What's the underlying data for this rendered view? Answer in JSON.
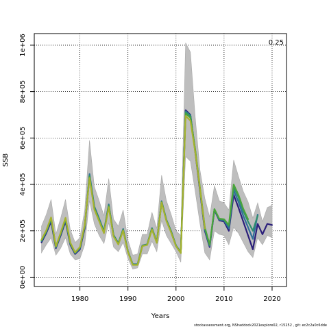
{
  "chart_data": {
    "type": "line",
    "xlabel": "Years",
    "ylabel": "SSB",
    "corner_label": "0.25",
    "xlim": [
      1970.5,
      2023
    ],
    "ylim": [
      -40000,
      1050000
    ],
    "xticks": [
      1980,
      1990,
      2000,
      2010,
      2020
    ],
    "xtick_labels": [
      "1980",
      "1990",
      "2000",
      "2010",
      "2020"
    ],
    "yticks": [
      0,
      200000,
      400000,
      600000,
      800000,
      1000000
    ],
    "ytick_labels": [
      "0e+00",
      "2e+05",
      "4e+05",
      "6e+05",
      "8e+05",
      "1e+06"
    ],
    "grid": true,
    "band": {
      "name": "confidence interval",
      "color": "#bebebe",
      "x": [
        1972,
        1973,
        1974,
        1975,
        1976,
        1977,
        1978,
        1979,
        1980,
        1981,
        1982,
        1983,
        1984,
        1985,
        1986,
        1987,
        1988,
        1989,
        1990,
        1991,
        1992,
        1993,
        1994,
        1995,
        1996,
        1997,
        1998,
        1999,
        2000,
        2001,
        2002,
        2003,
        2004,
        2005,
        2006,
        2007,
        2008,
        2009,
        2010,
        2011,
        2012,
        2013,
        2014,
        2015,
        2016,
        2017,
        2018,
        2019,
        2020
      ],
      "upper": [
        220000,
        270000,
        335000,
        185000,
        255000,
        335000,
        205000,
        150000,
        170000,
        290000,
        590000,
        390000,
        330000,
        265000,
        425000,
        250000,
        220000,
        290000,
        160000,
        95000,
        100000,
        185000,
        185000,
        280000,
        210000,
        440000,
        330000,
        270000,
        200000,
        180000,
        1010000,
        970000,
        690000,
        460000,
        340000,
        260000,
        395000,
        330000,
        320000,
        290000,
        505000,
        435000,
        370000,
        325000,
        255000,
        320000,
        240000,
        300000,
        310000
      ],
      "lower": [
        105000,
        140000,
        170000,
        95000,
        125000,
        170000,
        100000,
        75000,
        80000,
        140000,
        330000,
        230000,
        180000,
        145000,
        235000,
        130000,
        110000,
        150000,
        80000,
        35000,
        40000,
        100000,
        100000,
        155000,
        110000,
        245000,
        180000,
        145000,
        110000,
        65000,
        520000,
        500000,
        370000,
        230000,
        105000,
        75000,
        200000,
        185000,
        180000,
        140000,
        215000,
        190000,
        150000,
        110000,
        85000,
        170000,
        140000,
        180000,
        170000
      ]
    },
    "series": [
      {
        "name": "",
        "color": "#2b1f7a",
        "x": [
          1972,
          1973,
          1974,
          1975,
          1976,
          1977,
          1978,
          1979,
          1980,
          1981,
          1982,
          1983,
          1984,
          1985,
          1986,
          1987,
          1988,
          1989,
          1990,
          1991,
          1992,
          1993,
          1994,
          1995,
          1996,
          1997,
          1998,
          1999,
          2000,
          2001,
          2002,
          2003,
          2004,
          2005,
          2006,
          2007,
          2008,
          2009,
          2010,
          2011,
          2012,
          2013,
          2014,
          2015,
          2016,
          2017,
          2018,
          2019,
          2020
        ],
        "values": [
          150000,
          190000,
          240000,
          125000,
          180000,
          240000,
          140000,
          100000,
          120000,
          210000,
          440000,
          300000,
          250000,
          195000,
          310000,
          180000,
          145000,
          205000,
          110000,
          55000,
          55000,
          135000,
          140000,
          210000,
          150000,
          325000,
          245000,
          195000,
          135000,
          105000,
          720000,
          700000,
          540000,
          370000,
          200000,
          130000,
          290000,
          245000,
          240000,
          200000,
          355000,
          300000,
          240000,
          180000,
          120000,
          230000,
          185000,
          230000,
          225000
        ]
      },
      {
        "name": "",
        "color": "#2f6f9a",
        "x": [
          1972,
          1973,
          1974,
          1975,
          1976,
          1977,
          1978,
          1979,
          1980,
          1981,
          1982,
          1983,
          1984,
          1985,
          1986,
          1987,
          1988,
          1989,
          1990,
          1991,
          1992,
          1993,
          1994,
          1995,
          1996,
          1997,
          1998,
          1999,
          2000,
          2001,
          2002,
          2003,
          2004,
          2005,
          2006,
          2007,
          2008,
          2009,
          2010,
          2011,
          2012,
          2013,
          2014,
          2015,
          2016,
          2017
        ],
        "values": [
          155000,
          195000,
          248000,
          128000,
          185000,
          246000,
          143000,
          103000,
          124000,
          216000,
          445000,
          305000,
          253000,
          198000,
          314000,
          182000,
          147000,
          208000,
          112000,
          56000,
          56000,
          137000,
          142000,
          212000,
          152000,
          328000,
          248000,
          198000,
          137000,
          107000,
          715000,
          698000,
          545000,
          375000,
          205000,
          135000,
          292000,
          248000,
          245000,
          210000,
          375000,
          325000,
          265000,
          215000,
          165000,
          270000
        ]
      },
      {
        "name": "",
        "color": "#2e8f6e",
        "x": [
          1972,
          1973,
          1974,
          1975,
          1976,
          1977,
          1978,
          1979,
          1980,
          1981,
          1982,
          1983,
          1984,
          1985,
          1986,
          1987,
          1988,
          1989,
          1990,
          1991,
          1992,
          1993,
          1994,
          1995,
          1996,
          1997,
          1998,
          1999,
          2000,
          2001,
          2002,
          2003,
          2004,
          2005,
          2006,
          2007,
          2008,
          2009,
          2010,
          2011,
          2012,
          2013,
          2014,
          2015,
          2016,
          2017
        ],
        "values": [
          158000,
          198000,
          252000,
          130000,
          188000,
          250000,
          146000,
          105000,
          127000,
          220000,
          438000,
          300000,
          248000,
          195000,
          310000,
          180000,
          145000,
          205000,
          111000,
          55000,
          55000,
          136000,
          141000,
          210000,
          150000,
          326000,
          246000,
          196000,
          136000,
          106000,
          712000,
          695000,
          548000,
          380000,
          210000,
          138000,
          293000,
          250000,
          248000,
          220000,
          390000,
          345000,
          285000,
          240000,
          200000,
          265000
        ]
      },
      {
        "name": "",
        "color": "#4aa43a",
        "x": [
          1972,
          1973,
          1974,
          1975,
          1976,
          1977,
          1978,
          1979,
          1980,
          1981,
          1982,
          1983,
          1984,
          1985,
          1986,
          1987,
          1988,
          1989,
          1990,
          1991,
          1992,
          1993,
          1994,
          1995,
          1996,
          1997,
          1998,
          1999,
          2000,
          2001,
          2002,
          2003,
          2004,
          2005,
          2006,
          2007,
          2008,
          2009,
          2010,
          2011,
          2012,
          2013,
          2014,
          2015
        ],
        "values": [
          160000,
          200000,
          256000,
          132000,
          190000,
          254000,
          148000,
          106000,
          129000,
          222000,
          432000,
          296000,
          245000,
          192000,
          306000,
          178000,
          143000,
          203000,
          110000,
          54000,
          54000,
          135000,
          140000,
          208000,
          149000,
          324000,
          244000,
          194000,
          135000,
          105000,
          705000,
          688000,
          550000,
          385000,
          215000,
          140000,
          294000,
          252000,
          250000,
          225000,
          400000,
          355000,
          295000,
          250000
        ]
      },
      {
        "name": "",
        "color": "#a6b22e",
        "x": [
          1972,
          1973,
          1974,
          1975,
          1976,
          1977,
          1978,
          1979,
          1980,
          1981,
          1982,
          1983,
          1984,
          1985,
          1986,
          1987,
          1988,
          1989,
          1990,
          1991,
          1992,
          1993,
          1994,
          1995,
          1996,
          1997,
          1998,
          1999,
          2000,
          2001,
          2002,
          2003,
          2004,
          2005,
          2006
        ],
        "values": [
          162000,
          202000,
          258000,
          133000,
          192000,
          256000,
          149000,
          107000,
          130000,
          224000,
          428000,
          292000,
          242000,
          190000,
          302000,
          176000,
          141000,
          201000,
          109000,
          53000,
          53000,
          134000,
          139000,
          206000,
          148000,
          322000,
          242000,
          192000,
          134000,
          104000,
          695000,
          675000,
          540000,
          380000,
          210000
        ]
      }
    ]
  },
  "footer": "stockassessment.org, NShaddock2021explore02, r15252 , git: ec2c2a0c6dde"
}
